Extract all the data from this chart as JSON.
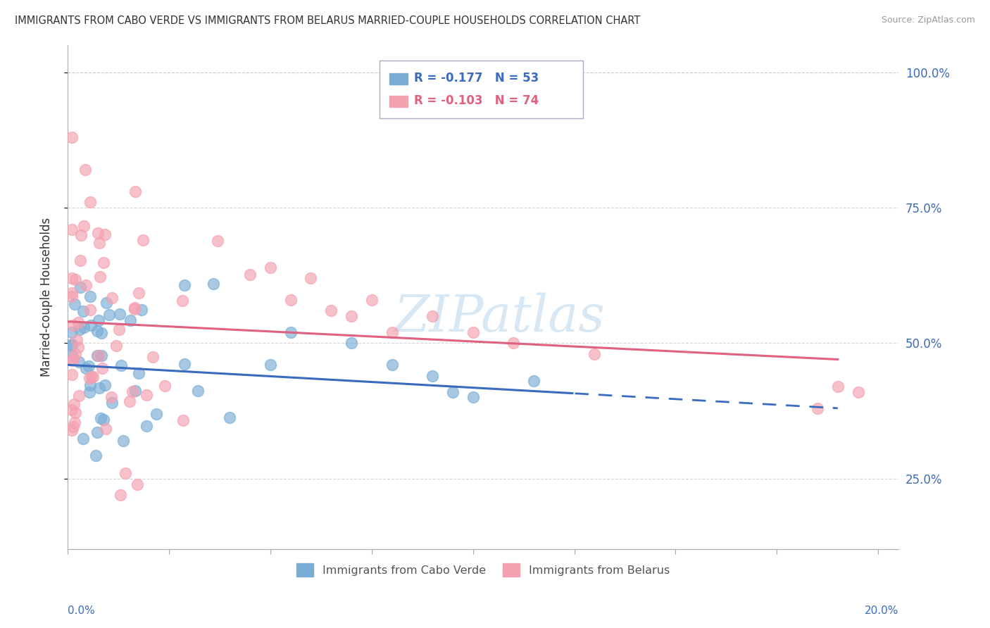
{
  "title": "IMMIGRANTS FROM CABO VERDE VS IMMIGRANTS FROM BELARUS MARRIED-COUPLE HOUSEHOLDS CORRELATION CHART",
  "source": "Source: ZipAtlas.com",
  "ylabel": "Married-couple Households",
  "series1_label": "Immigrants from Cabo Verde",
  "series1_color": "#7aadd4",
  "series1_line_color": "#3a6bbf",
  "series1_R": "-0.177",
  "series1_N": "53",
  "series2_label": "Immigrants from Belarus",
  "series2_color": "#f4a0b0",
  "series2_line_color": "#e06080",
  "series2_R": "-0.103",
  "series2_N": "74",
  "background_color": "#ffffff",
  "grid_color": "#cccccc",
  "watermark": "ZIPatlas",
  "xlim": [
    0.0,
    0.205
  ],
  "ylim": [
    0.12,
    1.05
  ],
  "yticks": [
    0.25,
    0.5,
    0.75,
    1.0
  ],
  "ytick_labels": [
    "25.0%",
    "50.0%",
    "75.0%",
    "100.0%"
  ]
}
